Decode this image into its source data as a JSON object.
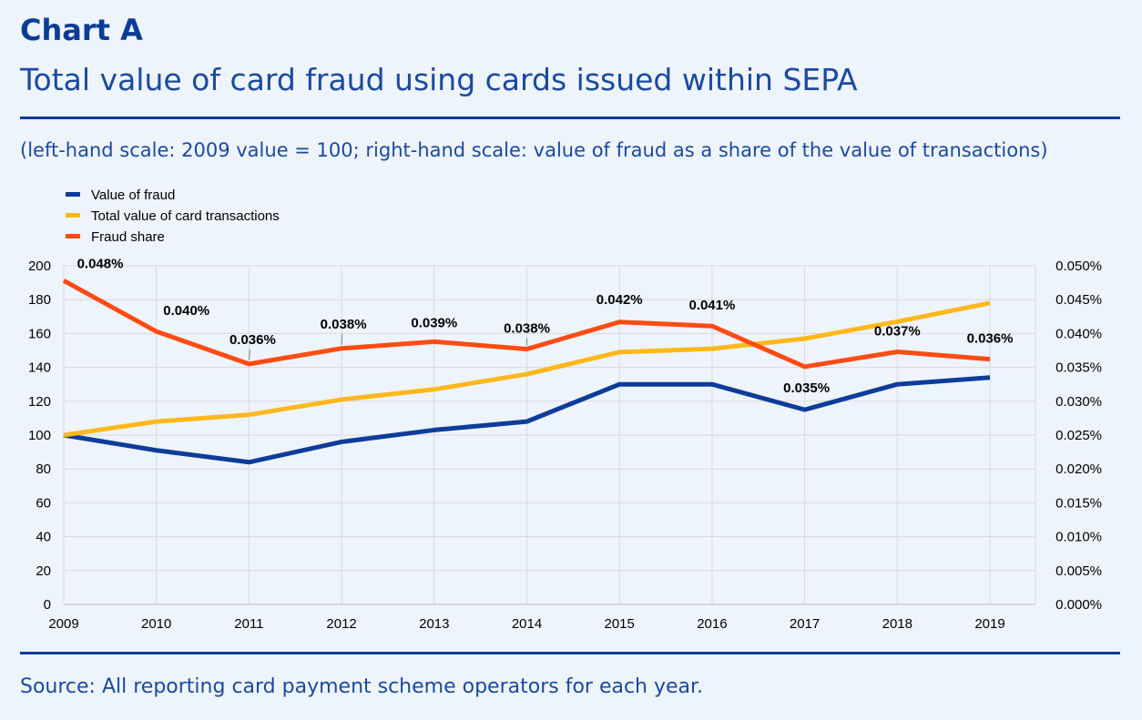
{
  "header": {
    "label": "Chart A",
    "title": "Total value of card fraud using cards issued within SEPA",
    "subtitle": "(left-hand scale: 2009 value = 100; right-hand scale: value of fraud as a share of the value of transactions)"
  },
  "footer": {
    "source": "Source: All reporting card payment scheme operators for each year."
  },
  "colors": {
    "value_of_fraud": "#0d3c9a",
    "total_value": "#ffb81c",
    "fraud_share": "#ff4b14",
    "grid": "#d9d9d9"
  },
  "chart_data": {
    "type": "line",
    "title": "Total value of card fraud using cards issued within SEPA",
    "x": [
      "2009",
      "2010",
      "2011",
      "2012",
      "2013",
      "2014",
      "2015",
      "2016",
      "2017",
      "2018",
      "2019"
    ],
    "ylim_left": [
      0,
      200
    ],
    "yticks_left": [
      "0",
      "20",
      "40",
      "60",
      "80",
      "100",
      "120",
      "140",
      "160",
      "180",
      "200"
    ],
    "ylim_right": [
      0,
      0.05
    ],
    "yticks_right": [
      "0.000%",
      "0.005%",
      "0.010%",
      "0.015%",
      "0.020%",
      "0.025%",
      "0.030%",
      "0.035%",
      "0.040%",
      "0.045%",
      "0.050%"
    ],
    "grid": true,
    "legend_position": "top-left",
    "series": [
      {
        "name": "Value of fraud",
        "axis": "left",
        "color": "#0d3c9a",
        "values": [
          100,
          91,
          84,
          96,
          103,
          108,
          130,
          130,
          115,
          130,
          134
        ]
      },
      {
        "name": "Total value of card transactions",
        "axis": "left",
        "color": "#ffb81c",
        "values": [
          100,
          108,
          112,
          121,
          127,
          136,
          149,
          151,
          157,
          167,
          178
        ]
      },
      {
        "name": "Fraud share",
        "axis": "right",
        "color": "#ff4b14",
        "values": [
          0.0478,
          0.0403,
          0.0355,
          0.0378,
          0.0388,
          0.0377,
          0.0417,
          0.0411,
          0.0351,
          0.0373,
          0.0362
        ],
        "labels": [
          "0.048%",
          "0.040%",
          "0.036%",
          "0.038%",
          "0.039%",
          "0.038%",
          "0.042%",
          "0.041%",
          "0.035%",
          "0.037%",
          "0.036%"
        ]
      }
    ]
  }
}
